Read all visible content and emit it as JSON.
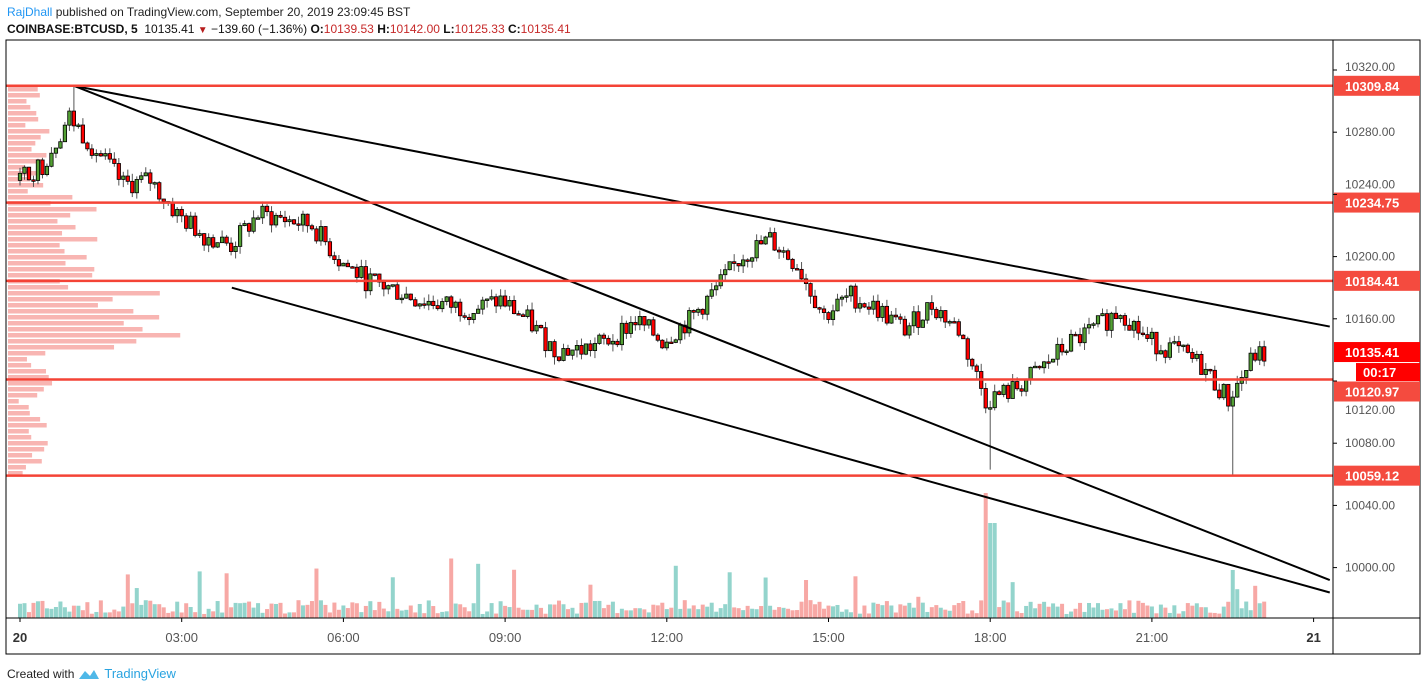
{
  "header": {
    "author": "RajDhall",
    "published_text": "published on TradingView.com, September 20, 2019 23:09:45 BST",
    "symbol": "COINBASE:BTCUSD, 5",
    "last_price": "10135.41",
    "change": "−139.60 (−1.36%)",
    "open_label": "O:",
    "open": "10139.53",
    "high_label": "H:",
    "high": "10142.00",
    "low_label": "L:",
    "low": "10125.33",
    "close_label": "C:",
    "close": "10135.41"
  },
  "footer": {
    "created_with": "Created with",
    "brand": "TradingView"
  },
  "colors": {
    "level_line": "#f44336",
    "level_label": "#f44b3f",
    "last_price_label": "#ff0000",
    "up_candle": "#53a034",
    "down_candle": "#ff0000",
    "volume_up": "#93d4cc",
    "volume_down": "#f7a8a5",
    "volume_profile": "#f7a8a5",
    "trendline": "#000000"
  },
  "chart_data": {
    "type": "candlestick",
    "interval": "5 min",
    "grid": false,
    "legend": "none",
    "ylim": [
      9980,
      10330
    ],
    "xlim_hours": [
      -0.25,
      24.2
    ],
    "y_ticks": [
      "10320.00",
      "10280.00",
      "10240.00",
      "10200.00",
      "10160.00",
      "10120.00",
      "10080.00",
      "10040.00",
      "10000.00"
    ],
    "x_ticks": [
      {
        "label": "20",
        "hour": 0,
        "bold": true
      },
      {
        "label": "03:00",
        "hour": 3
      },
      {
        "label": "06:00",
        "hour": 6
      },
      {
        "label": "09:00",
        "hour": 9
      },
      {
        "label": "12:00",
        "hour": 12
      },
      {
        "label": "15:00",
        "hour": 15
      },
      {
        "label": "18:00",
        "hour": 18
      },
      {
        "label": "21:00",
        "hour": 21
      },
      {
        "label": "21",
        "hour": 24,
        "bold": true
      }
    ],
    "approx_half_hour_closes": [
      10249,
      10259,
      10290,
      10268,
      10246,
      10249,
      10227,
      10214,
      10207,
      10227,
      10224,
      10220,
      10198,
      10185,
      10179,
      10172,
      10169,
      10166,
      10172,
      10159,
      10140,
      10140,
      10146,
      10159,
      10146,
      10159,
      10179,
      10201,
      10211,
      10195,
      10162,
      10175,
      10166,
      10153,
      10169,
      10153,
      10108,
      10114,
      10127,
      10143,
      10153,
      10166,
      10146,
      10140,
      10130,
      10108,
      10137
    ],
    "notable_lows": [
      {
        "hour": 18.0,
        "price": 10063
      },
      {
        "hour": 22.5,
        "price": 10059.12
      }
    ],
    "horizontal_levels": [
      {
        "price": 10309.84,
        "label": "10309.84"
      },
      {
        "price": 10234.75,
        "label": "10234.75"
      },
      {
        "price": 10184.41,
        "label": "10184.41"
      },
      {
        "price": 10120.97,
        "label": "10120.97"
      },
      {
        "price": 10059.12,
        "label": "10059.12"
      }
    ],
    "last_price": {
      "price": 10135.41,
      "label": "10135.41",
      "countdown": "00:17"
    },
    "trendlines": [
      {
        "from": [
          1.0,
          10309.84
        ],
        "to": [
          24.3,
          10155
        ]
      },
      {
        "from": [
          1.0,
          10309.84
        ],
        "to": [
          24.3,
          9992
        ]
      },
      {
        "from": [
          3.93,
          10180
        ],
        "to": [
          24.3,
          9984
        ]
      }
    ]
  }
}
